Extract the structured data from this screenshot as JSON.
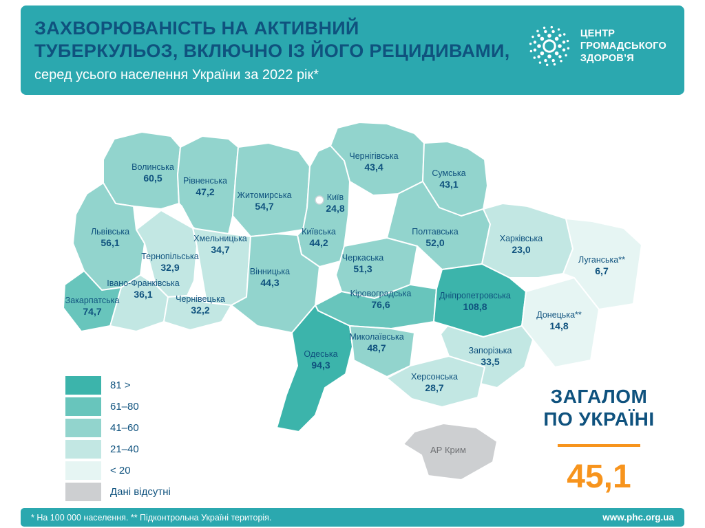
{
  "header": {
    "title_line1": "ЗАХВОРЮВАНІСТЬ НА АКТИВНИЙ",
    "title_line2": "ТУБЕРКУЛЬОЗ, ВКЛЮЧНО ІЗ ЙОГО РЕЦИДИВАМИ,",
    "subtitle": "серед усього населення України за 2022 рік*",
    "logo": {
      "line1": "ЦЕНТР",
      "line2": "ГРОМАДСЬКОГО",
      "line3": "ЗДОРОВ’Я"
    }
  },
  "chart_data": {
    "type": "choropleth-map",
    "title": "Захворюваність на активний туберкульоз, включно із його рецидивами, серед усього населення України за 2022 рік",
    "unit": "випадків на 100 000 населення",
    "regions": [
      {
        "id": "volyn",
        "name": "Волинська",
        "display": "60,5",
        "value": 60.5,
        "bucket": "41-60"
      },
      {
        "id": "rivne",
        "name": "Рівненська",
        "display": "47,2",
        "value": 47.2,
        "bucket": "41-60"
      },
      {
        "id": "zhytomyr",
        "name": "Житомирська",
        "display": "54,7",
        "value": 54.7,
        "bucket": "41-60"
      },
      {
        "id": "chernihiv",
        "name": "Чернігівська",
        "display": "43,4",
        "value": 43.4,
        "bucket": "41-60"
      },
      {
        "id": "sumy",
        "name": "Сумська",
        "display": "43,1",
        "value": 43.1,
        "bucket": "41-60"
      },
      {
        "id": "kyiv-oblast",
        "name": "Київська",
        "display": "44,2",
        "value": 44.2,
        "bucket": "41-60"
      },
      {
        "id": "kyiv-city",
        "name": "Київ",
        "display": "24,8",
        "value": 24.8,
        "bucket": "21-40"
      },
      {
        "id": "lviv",
        "name": "Львівська",
        "display": "56,1",
        "value": 56.1,
        "bucket": "41-60"
      },
      {
        "id": "khmelnytskyi",
        "name": "Хмельницька",
        "display": "34,7",
        "value": 34.7,
        "bucket": "21-40"
      },
      {
        "id": "ternopil",
        "name": "Тернопільська",
        "display": "32,9",
        "value": 32.9,
        "bucket": "21-40"
      },
      {
        "id": "poltava",
        "name": "Полтавська",
        "display": "52,0",
        "value": 52.0,
        "bucket": "41-60"
      },
      {
        "id": "kharkiv",
        "name": "Харківська",
        "display": "23,0",
        "value": 23.0,
        "bucket": "21-40"
      },
      {
        "id": "luhansk",
        "name": "Луганська**",
        "display": "6,7",
        "value": 6.7,
        "bucket": "lt20"
      },
      {
        "id": "vinnytsia",
        "name": "Вінницька",
        "display": "44,3",
        "value": 44.3,
        "bucket": "41-60"
      },
      {
        "id": "cherkasy",
        "name": "Черкаська",
        "display": "51,3",
        "value": 51.3,
        "bucket": "41-60"
      },
      {
        "id": "ivano-frankivsk",
        "name": "Івано-Франківська",
        "display": "36,1",
        "value": 36.1,
        "bucket": "21-40"
      },
      {
        "id": "zakarpattia",
        "name": "Закарпатська",
        "display": "74,7",
        "value": 74.7,
        "bucket": "61-80"
      },
      {
        "id": "chernivtsi",
        "name": "Чернівецька",
        "display": "32,2",
        "value": 32.2,
        "bucket": "21-40"
      },
      {
        "id": "kirovohrad",
        "name": "Кіровоградська",
        "display": "76,6",
        "value": 76.6,
        "bucket": "61-80"
      },
      {
        "id": "dnipro",
        "name": "Дніпропетровська",
        "display": "108,8",
        "value": 108.8,
        "bucket": "81plus"
      },
      {
        "id": "donetsk",
        "name": "Донецька**",
        "display": "14,8",
        "value": 14.8,
        "bucket": "lt20"
      },
      {
        "id": "odesa",
        "name": "Одеська",
        "display": "94,3",
        "value": 94.3,
        "bucket": "81plus"
      },
      {
        "id": "mykolaiv",
        "name": "Миколаївська",
        "display": "48,7",
        "value": 48.7,
        "bucket": "41-60"
      },
      {
        "id": "zaporizhzhia",
        "name": "Запорізька",
        "display": "33,5",
        "value": 33.5,
        "bucket": "21-40"
      },
      {
        "id": "kherson",
        "name": "Херсонська",
        "display": "28,7",
        "value": 28.7,
        "bucket": "21-40"
      },
      {
        "id": "crimea",
        "name": "АР Крим",
        "display": "",
        "value": null,
        "bucket": "no-data"
      }
    ],
    "legend": [
      {
        "bucket": "81plus",
        "label": "81 >",
        "color": "#3cb4ab"
      },
      {
        "bucket": "61-80",
        "label": "61–80",
        "color": "#68c5bc"
      },
      {
        "bucket": "41-60",
        "label": "41–60",
        "color": "#92d4cd"
      },
      {
        "bucket": "21-40",
        "label": "21–40",
        "color": "#c2e7e3"
      },
      {
        "bucket": "lt20",
        "label": "< 20",
        "color": "#e6f5f3"
      },
      {
        "bucket": "no-data",
        "label": "Дані відсутні",
        "color": "#cdcfd1"
      }
    ],
    "total": {
      "label_line1": "ЗАГАЛОМ",
      "label_line2": "ПО УКРАЇНІ",
      "value": "45,1"
    }
  },
  "footer": {
    "note": "* На 100 000 населення. ** Підконтрольна Україні територія.",
    "website": "www.phc.org.ua"
  }
}
